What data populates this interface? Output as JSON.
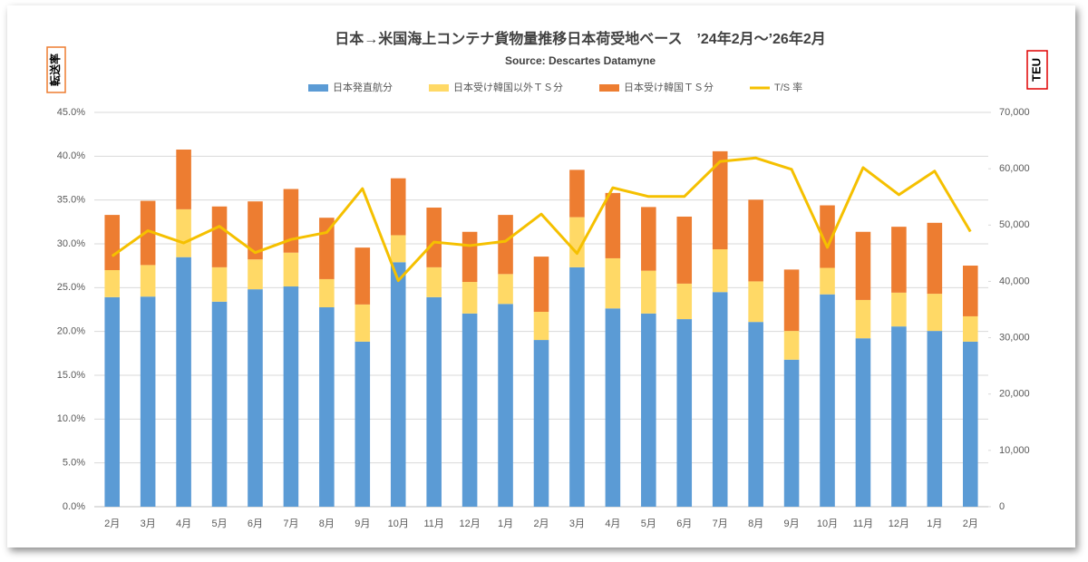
{
  "chart_data": {
    "type": "bar",
    "title": "日本→米国海上コンテナ貨物量推移日本荷受地ベース　’24年2月～’26年2月",
    "subtitle": "Source: Descartes Datamyne",
    "y_label": "転送率",
    "y2_label": "TEU",
    "stacked": true,
    "legend": "top",
    "categories": [
      "2月",
      "3月",
      "4月",
      "5月",
      "6月",
      "7月",
      "8月",
      "9月",
      "10月",
      "11月",
      "12月",
      "1月",
      "2月",
      "3月",
      "4月",
      "5月",
      "6月",
      "7月",
      "8月",
      "9月",
      "10月",
      "11月",
      "12月",
      "1月",
      "2月"
    ],
    "series": [
      {
        "name": "日本発直航分",
        "color": "#5b9bd5",
        "axis": "y2",
        "values": [
          37200,
          37300,
          44300,
          36400,
          38600,
          39100,
          35400,
          29300,
          43400,
          37200,
          34300,
          36000,
          29600,
          42500,
          35200,
          34300,
          33300,
          38100,
          32800,
          26100,
          37700,
          29900,
          32000,
          31200,
          29300
        ]
      },
      {
        "name": "日本受け韓国以外ＴＳ分",
        "color": "#ffd966",
        "axis": "y2",
        "values": [
          4800,
          5600,
          8500,
          6100,
          5300,
          6000,
          5000,
          6600,
          4800,
          5300,
          5600,
          5300,
          5000,
          8900,
          8900,
          7600,
          6300,
          7600,
          7200,
          5100,
          4700,
          6800,
          6000,
          6600,
          4500
        ]
      },
      {
        "name": "日本受け韓国ＴＳ分",
        "color": "#ed7d31",
        "axis": "y2",
        "values": [
          9800,
          11400,
          10600,
          10800,
          10300,
          11300,
          10900,
          10100,
          10100,
          10600,
          8900,
          10500,
          9800,
          8400,
          11600,
          11300,
          11900,
          17400,
          14500,
          10900,
          11100,
          12100,
          11700,
          12600,
          9000
        ]
      },
      {
        "name": "T/S 率",
        "color": "#f5c000",
        "type": "line",
        "axis": "y",
        "values": [
          28.6,
          31.5,
          30.1,
          32.0,
          29.0,
          30.5,
          31.3,
          36.3,
          25.8,
          30.2,
          29.8,
          30.3,
          33.4,
          28.9,
          36.4,
          35.4,
          35.4,
          39.4,
          39.8,
          38.5,
          29.6,
          38.7,
          35.6,
          38.3,
          31.4
        ]
      }
    ],
    "ylim": [
      0,
      45
    ],
    "yticks": [
      {
        "value": 0,
        "label": "0.0%"
      },
      {
        "value": 5,
        "label": "5.0%"
      },
      {
        "value": 10,
        "label": "10.0%"
      },
      {
        "value": 15,
        "label": "15.0%"
      },
      {
        "value": 20,
        "label": "20.0%"
      },
      {
        "value": 25,
        "label": "25.0%"
      },
      {
        "value": 30,
        "label": "30.0%"
      },
      {
        "value": 35,
        "label": "35.0%"
      },
      {
        "value": 40,
        "label": "40.0%"
      },
      {
        "value": 45,
        "label": "45.0%"
      }
    ],
    "y2lim": [
      0,
      70000
    ],
    "y2ticks": [
      0,
      {
        "value": 10000,
        "label": "10,000"
      },
      {
        "value": 20000,
        "label": "20,000"
      },
      {
        "value": 30000,
        "label": "30,000"
      },
      {
        "value": 40000,
        "label": "40,000"
      },
      {
        "value": 50000,
        "label": "50,000"
      },
      {
        "value": 60000,
        "label": "60,000"
      },
      {
        "value": 70000,
        "label": "70,000"
      }
    ],
    "grid": true
  }
}
